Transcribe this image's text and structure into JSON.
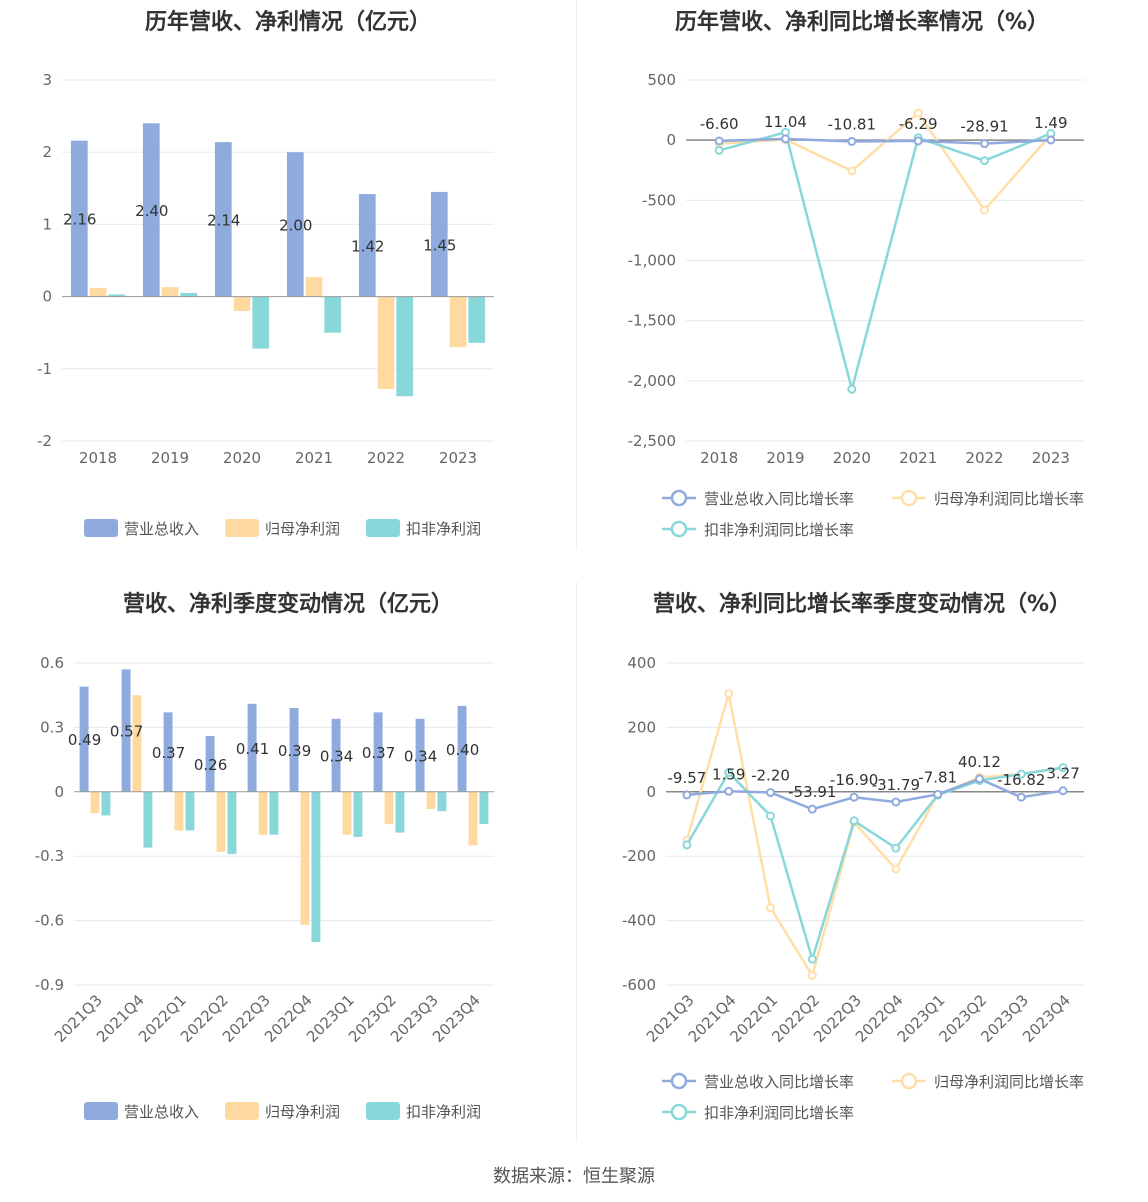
{
  "source": "数据来源：恒生聚源",
  "colors": {
    "revenue": "#8FAADC",
    "net_profit": "#FFD9A0",
    "deducted_profit": "#88D8DA",
    "line_revenue": "#8FAADC",
    "line_net": "#FFDFA8",
    "line_deducted": "#88D8DA",
    "grid": "#E6E8F0"
  },
  "chart_data": [
    {
      "type": "bar",
      "title": "历年营收、净利情况（亿元）",
      "categories": [
        "2018",
        "2019",
        "2020",
        "2021",
        "2022",
        "2023"
      ],
      "series": [
        {
          "name": "营业总收入",
          "values": [
            2.16,
            2.4,
            2.14,
            2.0,
            1.42,
            1.45
          ]
        },
        {
          "name": "归母净利润",
          "values": [
            0.12,
            0.13,
            -0.2,
            0.27,
            -1.28,
            -0.7
          ]
        },
        {
          "name": "扣非净利润",
          "values": [
            0.03,
            0.05,
            -0.72,
            -0.5,
            -1.38,
            -0.64
          ]
        }
      ],
      "data_labels": [
        "2.16",
        "2.40",
        "2.14",
        "2.00",
        "1.42",
        "1.45"
      ],
      "ylim": [
        -2,
        3
      ],
      "yticks": [
        "3",
        "2",
        "1",
        "0",
        "-1",
        "-2"
      ],
      "ytick_values": [
        3,
        2,
        1,
        0,
        -1,
        -2
      ],
      "grid": true,
      "legend": "bottom"
    },
    {
      "type": "line",
      "title": "历年营收、净利同比增长率情况（%）",
      "categories": [
        "2018",
        "2019",
        "2020",
        "2021",
        "2022",
        "2023"
      ],
      "series": [
        {
          "name": "营业总收入同比增长率",
          "values": [
            -6.6,
            11.04,
            -10.81,
            -6.29,
            -28.91,
            1.49
          ]
        },
        {
          "name": "归母净利润同比增长率",
          "values": [
            -30,
            5,
            -255,
            225,
            -580,
            45
          ]
        },
        {
          "name": "扣非净利润同比增长率",
          "values": [
            -85,
            65,
            -2070,
            20,
            -170,
            55
          ]
        }
      ],
      "data_labels": [
        "-6.60",
        "11.04",
        "-10.81",
        "-6.29",
        "-28.91",
        "1.49"
      ],
      "ylim": [
        -2500,
        500
      ],
      "yticks": [
        "500",
        "0",
        "-500",
        "-1,000",
        "-1,500",
        "-2,000",
        "-2,500"
      ],
      "ytick_values": [
        500,
        0,
        -500,
        -1000,
        -1500,
        -2000,
        -2500
      ],
      "grid": true,
      "legend": "bottom"
    },
    {
      "type": "bar",
      "title": "营收、净利季度变动情况（亿元）",
      "categories": [
        "2021Q3",
        "2021Q4",
        "2022Q1",
        "2022Q2",
        "2022Q3",
        "2022Q4",
        "2023Q1",
        "2023Q2",
        "2023Q3",
        "2023Q4"
      ],
      "series": [
        {
          "name": "营业总收入",
          "values": [
            0.49,
            0.57,
            0.37,
            0.26,
            0.41,
            0.39,
            0.34,
            0.37,
            0.34,
            0.4
          ]
        },
        {
          "name": "归母净利润",
          "values": [
            -0.1,
            0.45,
            -0.18,
            -0.28,
            -0.2,
            -0.62,
            -0.2,
            -0.15,
            -0.08,
            -0.25
          ]
        },
        {
          "name": "扣非净利润",
          "values": [
            -0.11,
            -0.26,
            -0.18,
            -0.29,
            -0.2,
            -0.7,
            -0.21,
            -0.19,
            -0.09,
            -0.15
          ]
        }
      ],
      "data_labels": [
        "0.49",
        "0.57",
        "0.37",
        "0.26",
        "0.41",
        "0.39",
        "0.34",
        "0.37",
        "0.34",
        "0.40"
      ],
      "ylim": [
        -0.9,
        0.6
      ],
      "yticks": [
        "0.6",
        "0.3",
        "0",
        "-0.3",
        "-0.6",
        "-0.9"
      ],
      "ytick_values": [
        0.6,
        0.3,
        0,
        -0.3,
        -0.6,
        -0.9
      ],
      "grid": true,
      "legend": "bottom"
    },
    {
      "type": "line",
      "title": "营收、净利同比增长率季度变动情况（%）",
      "categories": [
        "2021Q3",
        "2021Q4",
        "2022Q1",
        "2022Q2",
        "2022Q3",
        "2022Q4",
        "2023Q1",
        "2023Q2",
        "2023Q3",
        "2023Q4"
      ],
      "series": [
        {
          "name": "营业总收入同比增长率",
          "values": [
            -9.57,
            1.59,
            -2.2,
            -53.91,
            -16.9,
            -31.79,
            -7.81,
            40.12,
            -16.82,
            3.27
          ]
        },
        {
          "name": "归母净利润同比增长率",
          "values": [
            -150,
            305,
            -360,
            -570,
            -95,
            -240,
            -10,
            45,
            55,
            75
          ]
        },
        {
          "name": "扣非净利润同比增长率",
          "values": [
            -165,
            60,
            -75,
            -520,
            -90,
            -175,
            -10,
            35,
            55,
            75
          ]
        }
      ],
      "data_labels": [
        "-9.57",
        "1.59",
        "-2.20",
        "-53.91",
        "-16.90",
        "-31.79",
        "-7.81",
        "40.12",
        "-16.82",
        "3.27"
      ],
      "ylim": [
        -600,
        400
      ],
      "yticks": [
        "400",
        "200",
        "0",
        "-200",
        "-400",
        "-600"
      ],
      "ytick_values": [
        400,
        200,
        0,
        -200,
        -400,
        -600
      ],
      "grid": true,
      "legend": "bottom"
    }
  ]
}
